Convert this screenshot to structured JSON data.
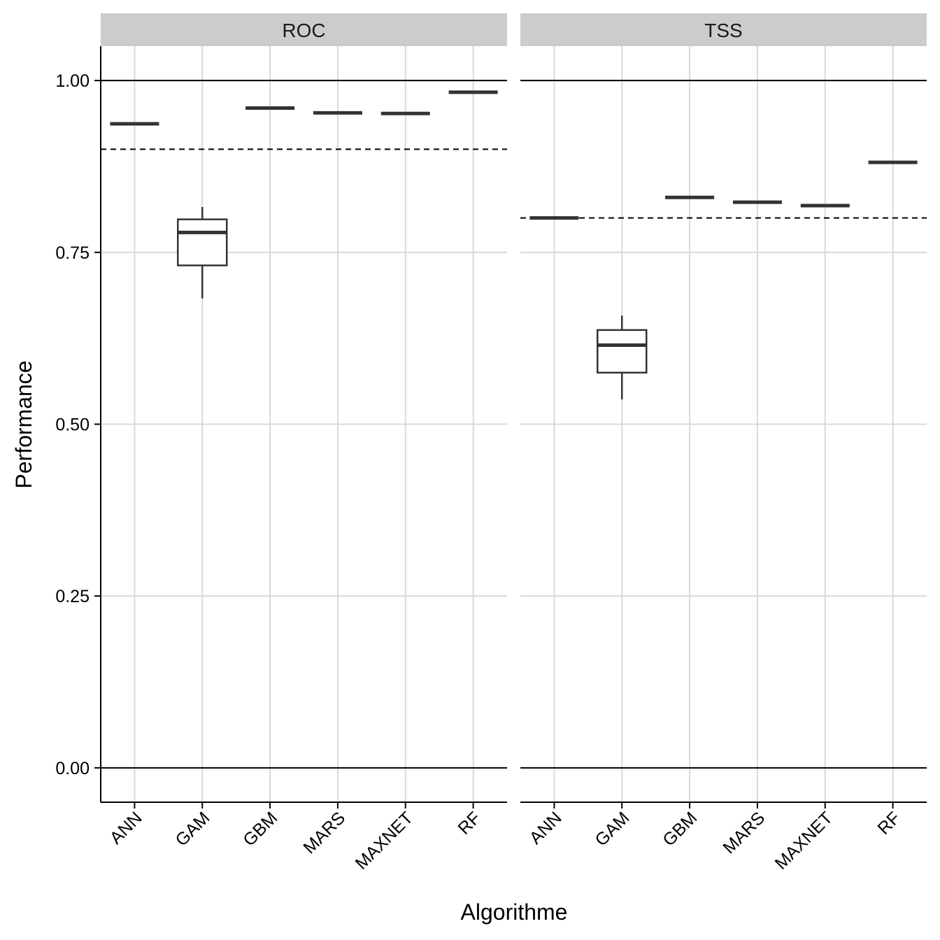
{
  "chart_data": {
    "type": "boxplot",
    "xlabel": "Algorithme",
    "ylabel": "Performance",
    "ylim": [
      -0.05,
      1.05
    ],
    "yticks": [
      0.0,
      0.25,
      0.5,
      0.75,
      1.0
    ],
    "ytick_labels": [
      "0.00",
      "0.25",
      "0.50",
      "0.75",
      "1.00"
    ],
    "categories": [
      "ANN",
      "GAM",
      "GBM",
      "MARS",
      "MAXNET",
      "RF"
    ],
    "grid": true,
    "reference_lines": {
      "solid": [
        0.0,
        1.0
      ]
    },
    "colors": {
      "box": "#333333",
      "grid": "#d9d9d9",
      "strip": "#cccccc"
    },
    "panels": [
      {
        "name": "ROC",
        "threshold": 0.9,
        "boxes": [
          {
            "category": "ANN",
            "min": 0.937,
            "q1": 0.937,
            "median": 0.937,
            "q3": 0.937,
            "max": 0.937
          },
          {
            "category": "GAM",
            "min": 0.683,
            "q1": 0.731,
            "median": 0.779,
            "q3": 0.798,
            "max": 0.816
          },
          {
            "category": "GBM",
            "min": 0.96,
            "q1": 0.96,
            "median": 0.96,
            "q3": 0.96,
            "max": 0.96
          },
          {
            "category": "MARS",
            "min": 0.953,
            "q1": 0.953,
            "median": 0.953,
            "q3": 0.953,
            "max": 0.953
          },
          {
            "category": "MAXNET",
            "min": 0.952,
            "q1": 0.952,
            "median": 0.952,
            "q3": 0.952,
            "max": 0.952
          },
          {
            "category": "RF",
            "min": 0.983,
            "q1": 0.983,
            "median": 0.983,
            "q3": 0.983,
            "max": 0.983
          }
        ]
      },
      {
        "name": "TSS",
        "threshold": 0.8,
        "boxes": [
          {
            "category": "ANN",
            "min": 0.8,
            "q1": 0.8,
            "median": 0.8,
            "q3": 0.8,
            "max": 0.8
          },
          {
            "category": "GAM",
            "min": 0.536,
            "q1": 0.575,
            "median": 0.615,
            "q3": 0.637,
            "max": 0.658
          },
          {
            "category": "GBM",
            "min": 0.83,
            "q1": 0.83,
            "median": 0.83,
            "q3": 0.83,
            "max": 0.83
          },
          {
            "category": "MARS",
            "min": 0.823,
            "q1": 0.823,
            "median": 0.823,
            "q3": 0.823,
            "max": 0.823
          },
          {
            "category": "MAXNET",
            "min": 0.818,
            "q1": 0.818,
            "median": 0.818,
            "q3": 0.818,
            "max": 0.818
          },
          {
            "category": "RF",
            "min": 0.881,
            "q1": 0.881,
            "median": 0.881,
            "q3": 0.881,
            "max": 0.881
          }
        ]
      }
    ]
  }
}
